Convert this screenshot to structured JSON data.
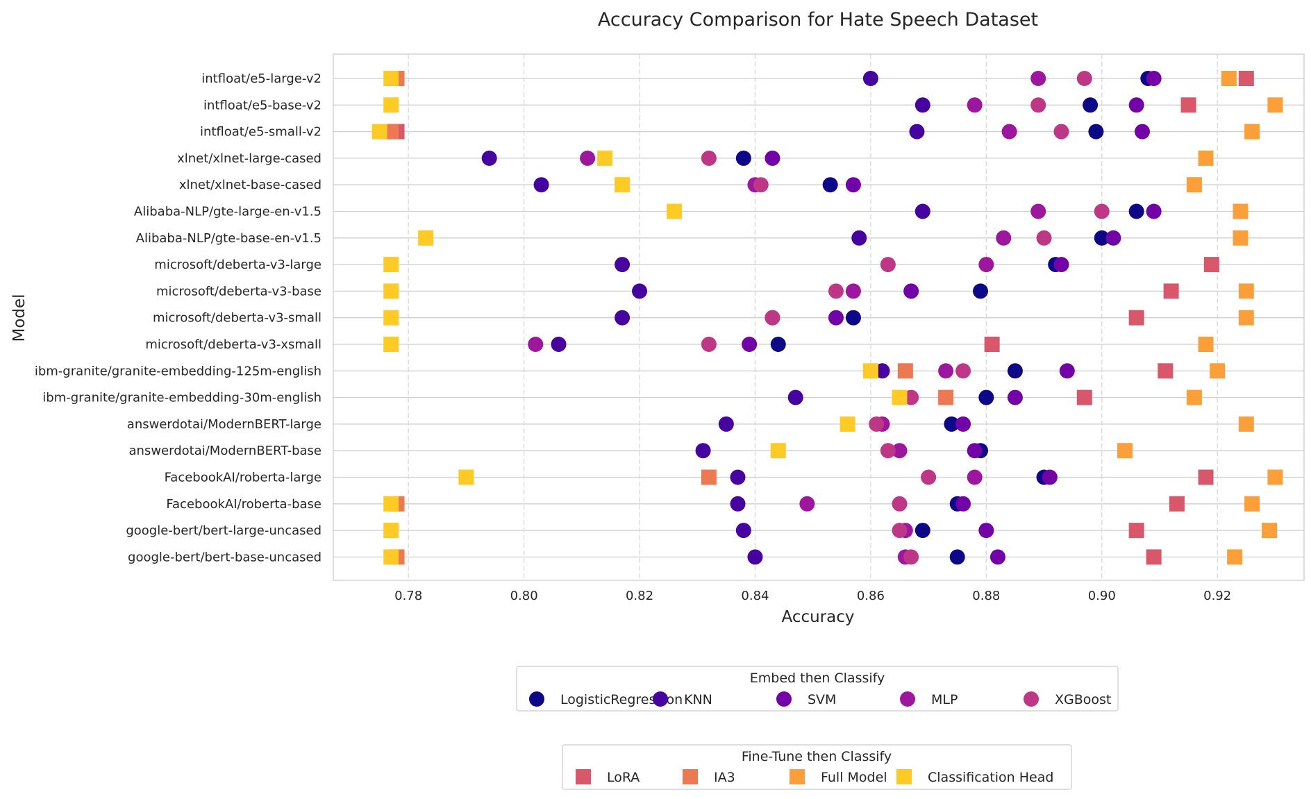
{
  "chart_data": {
    "type": "scatter",
    "title": "Accuracy Comparison for Hate Speech Dataset",
    "xlabel": "Accuracy",
    "ylabel": "Model",
    "xlim": [
      0.767,
      0.935
    ],
    "xticks": [
      "0.78",
      "0.80",
      "0.82",
      "0.84",
      "0.86",
      "0.88",
      "0.90",
      "0.92"
    ],
    "grid": true,
    "legend_placement": "bottom-center",
    "categories": [
      "intfloat/e5-large-v2",
      "intfloat/e5-base-v2",
      "intfloat/e5-small-v2",
      "xlnet/xlnet-large-cased",
      "xlnet/xlnet-base-cased",
      "Alibaba-NLP/gte-large-en-v1.5",
      "Alibaba-NLP/gte-base-en-v1.5",
      "microsoft/deberta-v3-large",
      "microsoft/deberta-v3-base",
      "microsoft/deberta-v3-small",
      "microsoft/deberta-v3-xsmall",
      "ibm-granite/granite-embedding-125m-english",
      "ibm-granite/granite-embedding-30m-english",
      "answerdotai/ModernBERT-large",
      "answerdotai/ModernBERT-base",
      "FacebookAI/roberta-large",
      "FacebookAI/roberta-base",
      "google-bert/bert-large-uncased",
      "google-bert/bert-base-uncased"
    ],
    "legends": [
      {
        "title": "Embed then Classify",
        "marker": "circle",
        "entries": [
          "LogisticRegression",
          "KNN",
          "SVM",
          "MLP",
          "XGBoost"
        ]
      },
      {
        "title": "Fine-Tune then Classify",
        "marker": "square",
        "entries": [
          "LoRA",
          "IA3",
          "Full Model",
          "Classification Head"
        ]
      }
    ],
    "series": [
      {
        "name": "LogisticRegression",
        "marker": "circle",
        "color": "#0d0887",
        "values": [
          0.908,
          0.898,
          0.899,
          0.838,
          0.853,
          0.906,
          0.9,
          0.892,
          0.879,
          0.857,
          0.844,
          0.885,
          0.88,
          0.874,
          0.879,
          0.89,
          0.875,
          0.869,
          0.875
        ]
      },
      {
        "name": "KNN",
        "marker": "circle",
        "color": "#46039f",
        "values": [
          0.86,
          0.869,
          0.868,
          0.794,
          0.803,
          0.869,
          0.858,
          0.817,
          0.82,
          0.817,
          0.806,
          0.862,
          0.847,
          0.835,
          0.831,
          0.837,
          0.837,
          0.838,
          0.84
        ]
      },
      {
        "name": "SVM",
        "marker": "circle",
        "color": "#7201a8",
        "values": [
          0.909,
          0.906,
          0.907,
          0.843,
          0.857,
          0.909,
          0.902,
          0.893,
          0.867,
          0.854,
          0.839,
          0.894,
          0.885,
          0.876,
          0.878,
          0.891,
          0.876,
          0.88,
          0.882
        ]
      },
      {
        "name": "MLP",
        "marker": "circle",
        "color": "#9c179e",
        "values": [
          0.889,
          0.878,
          0.884,
          0.811,
          0.84,
          0.889,
          0.883,
          0.88,
          0.857,
          0.843,
          0.802,
          0.873,
          0.865,
          0.862,
          0.865,
          0.878,
          0.849,
          0.866,
          0.866
        ]
      },
      {
        "name": "XGBoost",
        "marker": "circle",
        "color": "#bd3786",
        "values": [
          0.897,
          0.889,
          0.893,
          0.832,
          0.841,
          0.9,
          0.89,
          0.863,
          0.854,
          0.843,
          0.832,
          0.876,
          0.867,
          0.861,
          0.863,
          0.87,
          0.865,
          0.865,
          0.867
        ]
      },
      {
        "name": "LoRA",
        "marker": "square",
        "color": "#d8576b",
        "values": [
          0.925,
          0.915,
          0.778,
          null,
          null,
          null,
          null,
          0.919,
          0.912,
          0.906,
          0.881,
          0.911,
          0.897,
          null,
          null,
          0.918,
          0.913,
          0.906,
          0.909
        ]
      },
      {
        "name": "IA3",
        "marker": "square",
        "color": "#ed7953",
        "values": [
          0.778,
          null,
          0.777,
          null,
          null,
          null,
          null,
          null,
          null,
          null,
          null,
          0.866,
          0.873,
          null,
          null,
          0.832,
          0.778,
          null,
          0.778
        ]
      },
      {
        "name": "Full Model",
        "marker": "square",
        "color": "#fb9f3a",
        "values": [
          0.922,
          0.93,
          0.926,
          0.918,
          0.916,
          0.924,
          0.924,
          null,
          0.925,
          0.925,
          0.918,
          0.92,
          0.916,
          0.925,
          0.904,
          0.93,
          0.926,
          0.929,
          0.923
        ]
      },
      {
        "name": "Classification Head",
        "marker": "square",
        "color": "#fdca26",
        "values": [
          0.777,
          0.777,
          0.775,
          0.814,
          0.817,
          0.826,
          0.783,
          0.777,
          0.777,
          0.777,
          0.777,
          0.86,
          0.865,
          0.856,
          0.844,
          0.79,
          0.777,
          0.777,
          0.777
        ]
      }
    ]
  }
}
